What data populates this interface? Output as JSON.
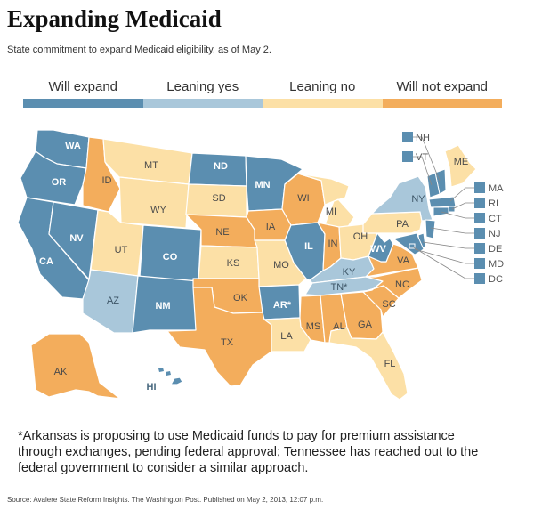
{
  "title": "Expanding Medicaid",
  "subtitle": "State commitment to expand Medicaid eligibility, as of May 2.",
  "colors": {
    "will_expand": "#5b8eb0",
    "leaning_yes": "#a9c7da",
    "leaning_no": "#fce0a6",
    "will_not_expand": "#f3ad5c"
  },
  "legend": [
    {
      "key": "will_expand",
      "label": "Will expand"
    },
    {
      "key": "leaning_yes",
      "label": "Leaning yes"
    },
    {
      "key": "leaning_no",
      "label": "Leaning no"
    },
    {
      "key": "will_not_expand",
      "label": "Will not expand"
    }
  ],
  "states": [
    {
      "abbr": "WA",
      "status": "will_expand"
    },
    {
      "abbr": "OR",
      "status": "will_expand"
    },
    {
      "abbr": "CA",
      "status": "will_expand"
    },
    {
      "abbr": "NV",
      "status": "will_expand"
    },
    {
      "abbr": "ID",
      "status": "will_not_expand"
    },
    {
      "abbr": "MT",
      "status": "leaning_no"
    },
    {
      "abbr": "WY",
      "status": "leaning_no"
    },
    {
      "abbr": "UT",
      "status": "leaning_no"
    },
    {
      "abbr": "AZ",
      "status": "leaning_yes"
    },
    {
      "abbr": "CO",
      "status": "will_expand"
    },
    {
      "abbr": "NM",
      "status": "will_expand"
    },
    {
      "abbr": "ND",
      "status": "will_expand"
    },
    {
      "abbr": "SD",
      "status": "leaning_no"
    },
    {
      "abbr": "NE",
      "status": "will_not_expand"
    },
    {
      "abbr": "KS",
      "status": "leaning_no"
    },
    {
      "abbr": "OK",
      "status": "will_not_expand"
    },
    {
      "abbr": "TX",
      "status": "will_not_expand"
    },
    {
      "abbr": "MN",
      "status": "will_expand"
    },
    {
      "abbr": "IA",
      "status": "will_not_expand"
    },
    {
      "abbr": "MO",
      "status": "leaning_no"
    },
    {
      "abbr": "AR*",
      "status": "will_expand"
    },
    {
      "abbr": "LA",
      "status": "leaning_no"
    },
    {
      "abbr": "WI",
      "status": "will_not_expand"
    },
    {
      "abbr": "IL",
      "status": "will_expand"
    },
    {
      "abbr": "MS",
      "status": "will_not_expand"
    },
    {
      "abbr": "MI",
      "status": "leaning_no"
    },
    {
      "abbr": "IN",
      "status": "will_not_expand"
    },
    {
      "abbr": "OH",
      "status": "leaning_no"
    },
    {
      "abbr": "KY",
      "status": "leaning_yes"
    },
    {
      "abbr": "TN*",
      "status": "leaning_yes"
    },
    {
      "abbr": "AL",
      "status": "will_not_expand"
    },
    {
      "abbr": "GA",
      "status": "will_not_expand"
    },
    {
      "abbr": "FL",
      "status": "leaning_no"
    },
    {
      "abbr": "SC",
      "status": "will_not_expand"
    },
    {
      "abbr": "NC",
      "status": "will_not_expand"
    },
    {
      "abbr": "VA",
      "status": "will_not_expand"
    },
    {
      "abbr": "WV",
      "status": "will_expand"
    },
    {
      "abbr": "PA",
      "status": "leaning_no"
    },
    {
      "abbr": "NY",
      "status": "leaning_yes"
    },
    {
      "abbr": "ME",
      "status": "leaning_no"
    },
    {
      "abbr": "AK",
      "status": "will_not_expand"
    },
    {
      "abbr": "HI",
      "status": "will_expand"
    }
  ],
  "northeast_callouts": [
    {
      "abbr": "NH",
      "status": "will_expand"
    },
    {
      "abbr": "VT",
      "status": "will_expand"
    },
    {
      "abbr": "MA",
      "status": "will_expand"
    },
    {
      "abbr": "RI",
      "status": "will_expand"
    },
    {
      "abbr": "CT",
      "status": "will_expand"
    },
    {
      "abbr": "NJ",
      "status": "will_expand"
    },
    {
      "abbr": "DE",
      "status": "will_expand"
    },
    {
      "abbr": "MD",
      "status": "will_expand"
    },
    {
      "abbr": "DC",
      "status": "will_expand"
    }
  ],
  "note": "*Arkansas is proposing to use Medicaid funds to pay for premium assistance through exchanges, pending federal approval; Tennessee has reached out to the federal government to consider a similar approach.",
  "source": "Source: Avalere State Reform Insights. The Washington Post. Published on May 2, 2013, 12:07 p.m."
}
